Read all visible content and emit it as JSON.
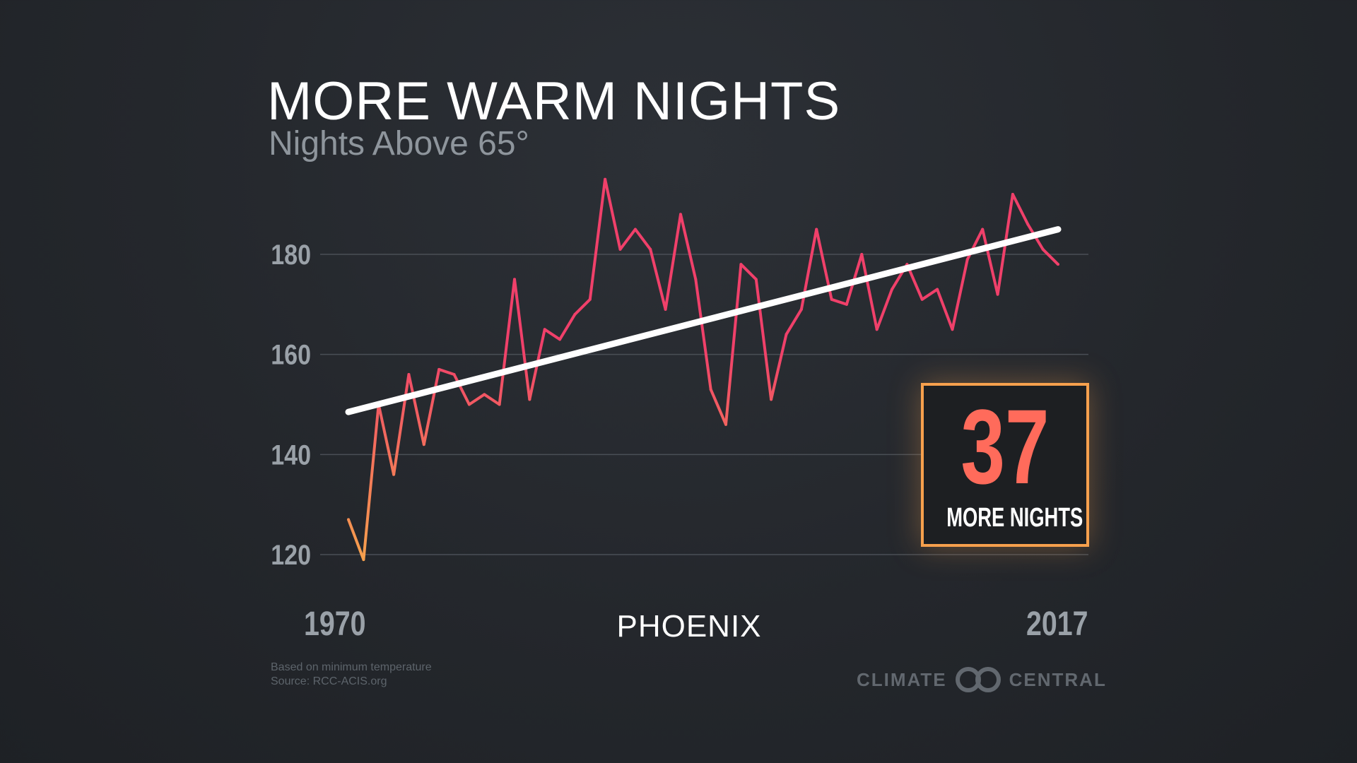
{
  "title": "MORE WARM NIGHTS",
  "subtitle": "Nights Above 65°",
  "city": "PHOENIX",
  "callout": {
    "number": "37",
    "label": "MORE NIGHTS"
  },
  "notes": {
    "line1": "Based on minimum temperature",
    "line2": "Source: RCC-ACIS.org"
  },
  "logo": {
    "left_text": "CLIMATE",
    "right_text": "CENTRAL",
    "icon": "climate-central-logo-icon"
  },
  "colors": {
    "line_start": "#f6a04d",
    "line_end": "#f0406a",
    "trend": "#ffffff",
    "callout_border": "#f6a04d",
    "callout_number": "#ff6b5b"
  },
  "chart_data": {
    "type": "line",
    "title": "MORE WARM NIGHTS",
    "subtitle": "Nights Above 65°",
    "xlabel": "PHOENIX",
    "ylabel": "",
    "x_tick_labels": [
      "1970",
      "2017"
    ],
    "xlim": [
      1970,
      2017
    ],
    "ylim": [
      120,
      190
    ],
    "y_ticks": [
      120,
      140,
      160,
      180
    ],
    "y_tick_labels": [
      "120",
      "140",
      "160",
      "180"
    ],
    "grid": true,
    "legend": "none",
    "series": [
      {
        "x": [
          1970,
          1971,
          1972,
          1973,
          1974,
          1975,
          1976,
          1977,
          1978,
          1979,
          1980,
          1981,
          1982,
          1983,
          1984,
          1985,
          1986,
          1987,
          1988,
          1989,
          1990,
          1991,
          1992,
          1993,
          1994,
          1995,
          1996,
          1997,
          1998,
          1999,
          2000,
          2001,
          2002,
          2003,
          2004,
          2005,
          2006,
          2007,
          2008,
          2009,
          2010,
          2011,
          2012,
          2013,
          2014,
          2015,
          2016,
          2017
        ],
        "y": [
          127,
          119,
          150,
          136,
          156,
          142,
          157,
          156,
          150,
          152,
          150,
          175,
          151,
          165,
          163,
          168,
          171,
          195,
          181,
          185,
          181,
          169,
          188,
          175,
          153,
          146,
          178,
          175,
          151,
          164,
          169,
          185,
          171,
          170,
          180,
          165,
          173,
          178,
          171,
          173,
          165,
          179,
          185,
          172,
          192,
          186,
          181,
          178
        ]
      }
    ],
    "trend_line": {
      "x": [
        1970,
        2017
      ],
      "y": [
        148.5,
        185
      ]
    },
    "annotation": "37 MORE NIGHTS"
  }
}
